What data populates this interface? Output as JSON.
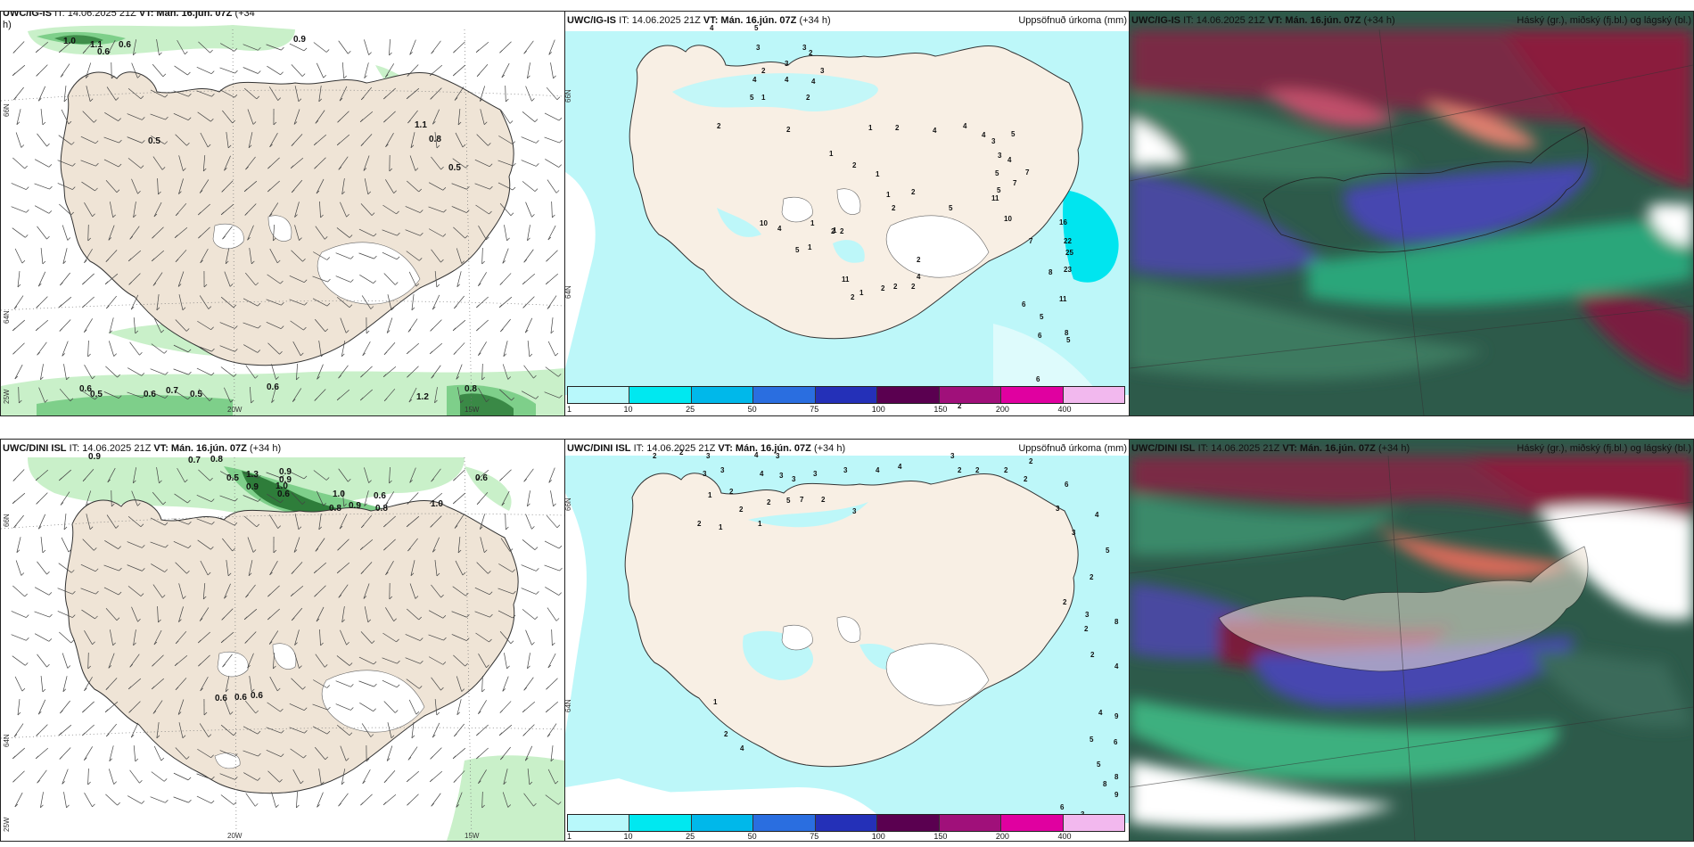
{
  "panels": {
    "p1": {
      "model": "UWC/IG-IS",
      "it": "IT: 14.06.2025 21Z",
      "vt_label": "VT:",
      "vt": "Mán. 16.jún. 07Z",
      "lead": "(+34",
      "lead2": "h)"
    },
    "p2": {
      "model": "UWC/IG-IS",
      "it": "IT: 14.06.2025 21Z",
      "vt_label": "VT:",
      "vt": "Mán. 16.jún. 07Z",
      "lead": "(+34 h)",
      "product": "Uppsöfnuð úrkoma (mm)"
    },
    "p3": {
      "model": "UWC/IG-IS",
      "it": "IT: 14.06.2025 21Z",
      "vt_label": "VT:",
      "vt": "Mán. 16.jún. 07Z",
      "lead": "(+34 h)",
      "product": "Háský (gr.), miðský (fj.bl.) og lágský (bl.)"
    },
    "p4": {
      "model": "UWC/DINI ISL",
      "it": "IT: 14.06.2025 21Z",
      "vt_label": "VT:",
      "vt": "Mán. 16.jún. 07Z",
      "lead": "(+34 h)"
    },
    "p5": {
      "model": "UWC/DINI ISL",
      "it": "IT: 14.06.2025 21Z",
      "vt_label": "VT:",
      "vt": "Mán. 16.jún. 07Z",
      "lead": "(+34 h)",
      "product": "Uppsöfnuð úrkoma (mm)"
    },
    "p6": {
      "model": "UWC/DINI ISL",
      "it": "IT: 14.06.2025 21Z",
      "vt_label": "VT:",
      "vt": "Mán. 16.jún. 07Z",
      "lead": "(+34 h)",
      "product": "Háský (gr.), miðský (fj.bl.) og lágský (bl.)"
    }
  },
  "grid_labels": {
    "lat66": "66N",
    "lat64": "64N",
    "lon25": "25W",
    "lon20": "20W",
    "lon15": "15W"
  },
  "colorbar": {
    "ticks": [
      "1",
      "10",
      "25",
      "50",
      "75",
      "100",
      "150",
      "200",
      "400"
    ],
    "colors": [
      "#b8f8fb",
      "#00e8f0",
      "#00b8ea",
      "#2a6ee0",
      "#2430b8",
      "#5a0050",
      "#a0107a",
      "#e000a0",
      "#f2b8ee"
    ]
  },
  "p1_values": [
    "1.0",
    "1.1",
    "0.6",
    "0.9",
    "0.6",
    "0.5",
    "1.1",
    "0.8",
    "0.5",
    "0.6",
    "0.5",
    "0.6",
    "0.7",
    "0.5",
    "0.6",
    "1.2",
    "0.8"
  ],
  "p4_values": [
    "0.9",
    "0.7",
    "0.8",
    "0.9",
    "0.5",
    "1.3",
    "0.9",
    "1.0",
    "0.9",
    "0.6",
    "1.0",
    "0.6",
    "0.8",
    "0.9",
    "0.8",
    "1.0",
    "0.6",
    "0.6",
    "0.6",
    "0.6"
  ],
  "p2_values": [
    "4",
    "5",
    "3",
    "3",
    "2",
    "3",
    "2",
    "3",
    "4",
    "4",
    "4",
    "5",
    "1",
    "2",
    "2",
    "2",
    "1",
    "2",
    "1",
    "2",
    "4",
    "4",
    "4",
    "3",
    "3",
    "5",
    "5",
    "5",
    "4",
    "11",
    "7",
    "7",
    "10",
    "7",
    "16",
    "22",
    "25",
    "23",
    "8",
    "6",
    "1",
    "1",
    "2",
    "2",
    "5",
    "10",
    "4",
    "5",
    "1",
    "1",
    "2",
    "2",
    "2",
    "2",
    "11",
    "1",
    "2",
    "2",
    "5",
    "6",
    "8",
    "5",
    "11",
    "6",
    "1",
    "2",
    "2",
    "4",
    "1"
  ],
  "p5_values": [
    "2",
    "2",
    "3",
    "3",
    "3",
    "4",
    "4",
    "3",
    "3",
    "3",
    "3",
    "1",
    "2",
    "2",
    "2",
    "1",
    "1",
    "2",
    "5",
    "7",
    "2",
    "3",
    "3",
    "4",
    "4",
    "3",
    "2",
    "2",
    "2",
    "2",
    "2",
    "6",
    "3",
    "3",
    "4",
    "5",
    "2",
    "2",
    "3",
    "2",
    "2",
    "8",
    "4",
    "4",
    "9",
    "6",
    "5",
    "5",
    "8",
    "9",
    "8",
    "6",
    "3",
    "1",
    "2",
    "4"
  ],
  "colors": {
    "land": "#efe4d6",
    "land_light": "#f8efe4",
    "ice": "#ffffff",
    "precip_light": "#c9f0c9",
    "precip_mid": "#7ecf8a",
    "precip_dark": "#2e7d3a",
    "cyan_light": "#bdf7f9",
    "cyan": "#00e5ef"
  }
}
